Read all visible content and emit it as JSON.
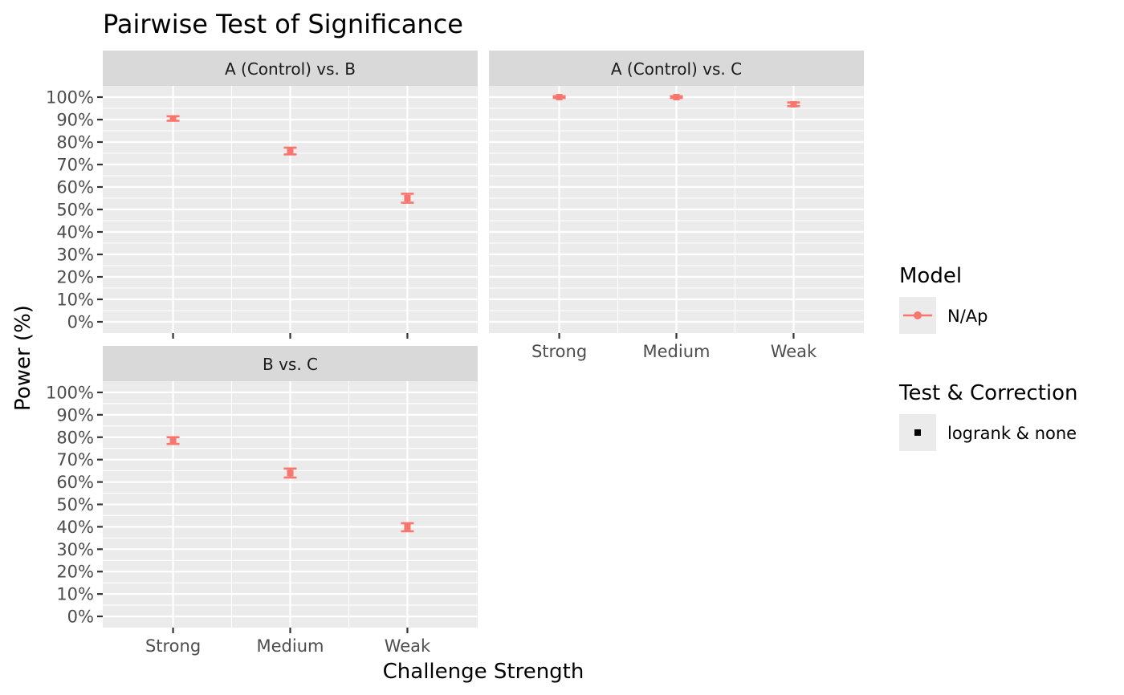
{
  "chart_data": {
    "type": "scatter",
    "title": "Pairwise Test of Significance",
    "xlabel": "Challenge Strength",
    "ylabel": "Power (%)",
    "categories": [
      "Strong",
      "Medium",
      "Weak"
    ],
    "ylim": [
      0,
      100
    ],
    "y_ticks": [
      "0%",
      "10%",
      "20%",
      "30%",
      "40%",
      "50%",
      "60%",
      "70%",
      "80%",
      "90%",
      "100%"
    ],
    "point_color": "#F8766D",
    "grid": true,
    "facets": [
      {
        "label": "A (Control) vs. B",
        "series": [
          {
            "values": [
              90.5,
              76.0,
              55.0
            ],
            "lower": [
              89.5,
              74.5,
              53.0
            ],
            "upper": [
              91.5,
              77.5,
              57.0
            ]
          }
        ]
      },
      {
        "label": "A (Control) vs. C",
        "series": [
          {
            "values": [
              100.0,
              100.0,
              96.8
            ],
            "lower": [
              99.6,
              99.6,
              96.0
            ],
            "upper": [
              100.4,
              100.4,
              97.6
            ]
          }
        ]
      },
      {
        "label": "B vs. C",
        "series": [
          {
            "values": [
              78.5,
              64.0,
              39.8
            ],
            "lower": [
              77.0,
              62.0,
              38.0
            ],
            "upper": [
              80.0,
              66.0,
              41.6
            ]
          }
        ]
      }
    ],
    "legend": {
      "placement": "right",
      "groups": [
        {
          "title": "Model",
          "items": [
            {
              "label": "N/Ap",
              "color": "#F8766D",
              "shape": "line-point"
            }
          ]
        },
        {
          "title": "Test & Correction",
          "items": [
            {
              "label": "logrank & none",
              "color": "#000000",
              "shape": "square"
            }
          ]
        }
      ]
    }
  }
}
